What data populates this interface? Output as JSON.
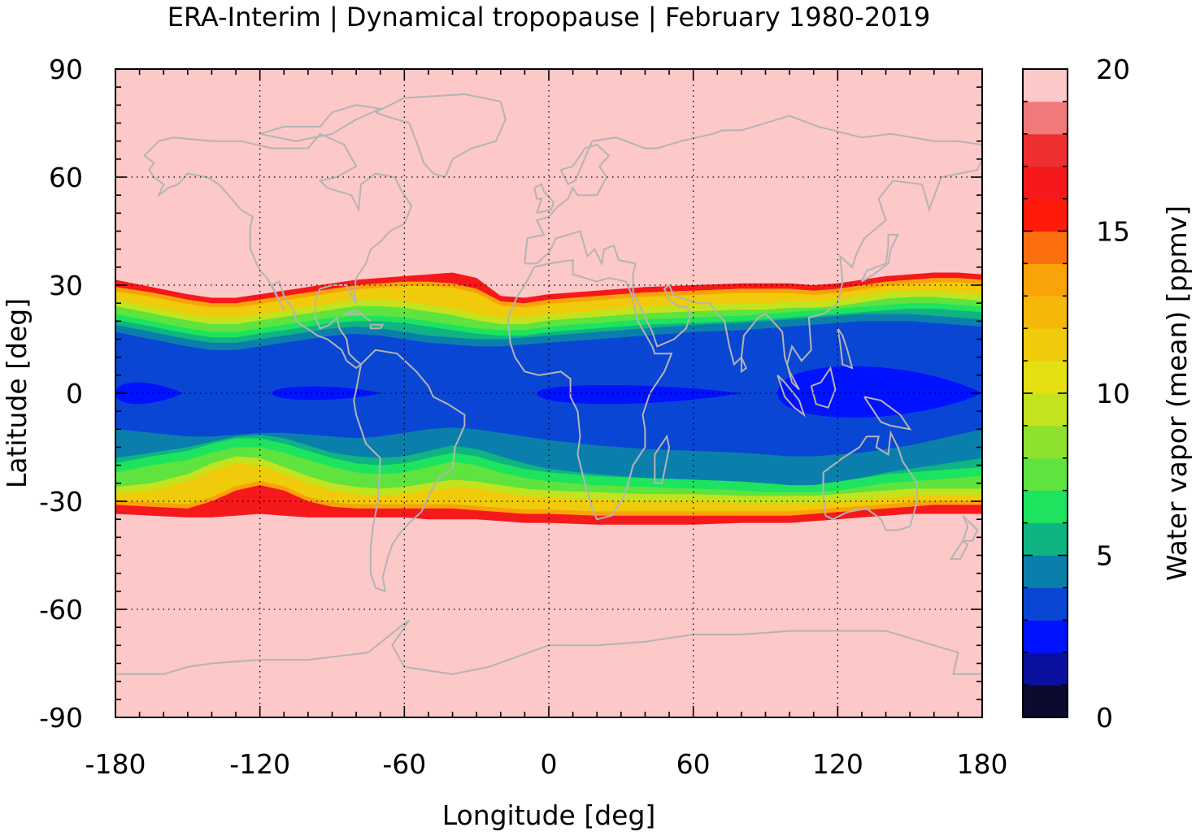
{
  "chart_data": {
    "type": "heatmap",
    "title": "ERA-Interim | Dynamical tropopause | February 1980-2019",
    "xlabel": "Longitude [deg]",
    "ylabel": "Latitude [deg]",
    "xlim": [
      -180,
      180
    ],
    "ylim": [
      -90,
      90
    ],
    "x_ticks": [
      "-180",
      "-120",
      "-60",
      "0",
      "60",
      "120",
      "180"
    ],
    "y_ticks": [
      "90",
      "60",
      "30",
      "0",
      "-30",
      "-60",
      "-90"
    ],
    "x_tick_values": [
      -180,
      -120,
      -60,
      0,
      60,
      120,
      180
    ],
    "y_tick_values": [
      90,
      60,
      30,
      0,
      -30,
      -60,
      -90
    ],
    "grid": "dotted",
    "colorbar": {
      "label": "Water vapor (mean) [ppmv]",
      "range": [
        0,
        20
      ],
      "ticks": [
        "0",
        "5",
        "10",
        "15",
        "20"
      ],
      "tick_values": [
        0,
        5,
        10,
        15,
        20
      ],
      "levels": [
        {
          "from": 0,
          "to": 1,
          "color": "#0b0b2e"
        },
        {
          "from": 1,
          "to": 2,
          "color": "#0a0f9e"
        },
        {
          "from": 2,
          "to": 3,
          "color": "#0012ff"
        },
        {
          "from": 3,
          "to": 4,
          "color": "#0a46d4"
        },
        {
          "from": 4,
          "to": 5,
          "color": "#0b7fab"
        },
        {
          "from": 5,
          "to": 6,
          "color": "#0fb482"
        },
        {
          "from": 6,
          "to": 7,
          "color": "#1ee35e"
        },
        {
          "from": 7,
          "to": 8,
          "color": "#5ee33f"
        },
        {
          "from": 8,
          "to": 9,
          "color": "#8ee22e"
        },
        {
          "from": 9,
          "to": 10,
          "color": "#c3e31e"
        },
        {
          "from": 10,
          "to": 11,
          "color": "#e4e011"
        },
        {
          "from": 11,
          "to": 12,
          "color": "#efcb0b"
        },
        {
          "from": 12,
          "to": 13,
          "color": "#f5b80a"
        },
        {
          "from": 13,
          "to": 14,
          "color": "#f9a309"
        },
        {
          "from": 14,
          "to": 15,
          "color": "#fb6f0f"
        },
        {
          "from": 15,
          "to": 16,
          "color": "#ff1a0a"
        },
        {
          "from": 16,
          "to": 17,
          "color": "#f5191c"
        },
        {
          "from": 17,
          "to": 18,
          "color": "#ee3030"
        },
        {
          "from": 18,
          "to": 19,
          "color": "#f07a7a"
        },
        {
          "from": 19,
          "to": 20,
          "color": "#fdc8c8"
        }
      ]
    },
    "field_bands": [
      {
        "value": 19.5,
        "description_levels": "background"
      },
      {
        "value": 16.5,
        "lat_south_edge_approx": [
          -35,
          -31
        ],
        "lat_north_edge_approx": [
          26,
          33
        ]
      },
      {
        "value": 12.5
      },
      {
        "value": 8.5
      },
      {
        "value": 5.5
      },
      {
        "value": 3.5
      },
      {
        "value": 2.5
      }
    ],
    "profile_lon": [
      -180,
      -165,
      -150,
      -140,
      -130,
      -120,
      -110,
      -100,
      -90,
      -80,
      -70,
      -60,
      -50,
      -40,
      -30,
      -20,
      -10,
      0,
      20,
      40,
      60,
      80,
      90,
      100,
      110,
      120,
      130,
      140,
      150,
      160,
      170,
      180
    ],
    "profile_lat": {
      "red_north": [
        31.5,
        29.5,
        27.5,
        26.5,
        26.5,
        27.5,
        28.5,
        29.5,
        30.5,
        31.5,
        32.0,
        32.5,
        33.0,
        33.5,
        32.0,
        27.0,
        26.5,
        27.5,
        28.5,
        29.5,
        30.0,
        30.5,
        30.5,
        30.5,
        30.0,
        30.5,
        31.5,
        32.5,
        33.0,
        33.5,
        33.5,
        33.0
      ],
      "orange_north": [
        29.5,
        28.0,
        26.0,
        25.0,
        25.0,
        26.0,
        27.0,
        28.0,
        29.0,
        30.0,
        30.5,
        31.0,
        31.0,
        30.5,
        29.0,
        25.5,
        25.0,
        26.0,
        27.0,
        28.0,
        28.5,
        29.0,
        29.0,
        29.0,
        28.5,
        29.0,
        30.0,
        31.0,
        31.5,
        32.0,
        32.0,
        31.5
      ],
      "green_north": [
        26.0,
        24.0,
        22.0,
        21.0,
        21.0,
        22.0,
        23.0,
        24.0,
        25.0,
        26.0,
        26.0,
        25.5,
        24.5,
        23.5,
        22.0,
        21.0,
        21.0,
        22.0,
        23.0,
        24.0,
        24.5,
        25.0,
        25.0,
        25.5,
        25.5,
        26.0,
        27.0,
        28.0,
        28.5,
        28.5,
        28.0,
        27.5
      ],
      "teal_north": [
        22.0,
        20.0,
        18.0,
        17.0,
        17.0,
        18.0,
        19.0,
        20.0,
        21.0,
        21.5,
        21.5,
        21.0,
        20.0,
        19.0,
        18.0,
        17.5,
        17.5,
        18.5,
        19.5,
        20.5,
        21.0,
        21.5,
        22.0,
        22.5,
        23.0,
        23.5,
        24.0,
        24.5,
        25.0,
        25.0,
        24.5,
        24.0
      ],
      "blue_north": [
        17.0,
        15.0,
        13.0,
        12.0,
        12.0,
        13.0,
        14.0,
        15.0,
        16.0,
        16.5,
        16.0,
        15.0,
        14.0,
        13.5,
        13.0,
        13.0,
        13.5,
        14.0,
        15.0,
        16.0,
        17.0,
        17.5,
        18.0,
        18.5,
        19.0,
        19.5,
        20.0,
        20.0,
        20.0,
        19.5,
        19.0,
        18.5
      ],
      "blue_south": [
        -10.0,
        -11.0,
        -12.0,
        -12.0,
        -11.5,
        -11.0,
        -11.0,
        -11.5,
        -12.0,
        -12.5,
        -12.0,
        -11.0,
        -10.0,
        -9.5,
        -10.0,
        -11.0,
        -12.0,
        -13.0,
        -14.5,
        -15.5,
        -16.0,
        -16.5,
        -17.0,
        -17.5,
        -17.5,
        -17.0,
        -16.5,
        -15.5,
        -14.5,
        -13.0,
        -11.5,
        -10.0
      ],
      "teal_south": [
        -16.5,
        -15.0,
        -13.5,
        -12.0,
        -10.5,
        -10.0,
        -11.0,
        -13.0,
        -15.0,
        -16.0,
        -16.5,
        -16.0,
        -14.5,
        -13.0,
        -14.0,
        -16.0,
        -18.0,
        -19.5,
        -21.0,
        -22.0,
        -22.5,
        -23.0,
        -23.5,
        -24.0,
        -24.0,
        -23.0,
        -22.0,
        -20.5,
        -19.5,
        -18.5,
        -17.5,
        -16.5
      ],
      "green_south": [
        -22.0,
        -20.0,
        -18.5,
        -16.5,
        -15.0,
        -15.0,
        -16.5,
        -18.5,
        -20.5,
        -22.0,
        -22.5,
        -22.0,
        -20.5,
        -19.0,
        -20.0,
        -22.0,
        -23.5,
        -24.5,
        -25.5,
        -26.0,
        -26.5,
        -27.0,
        -27.5,
        -27.5,
        -27.5,
        -27.0,
        -26.0,
        -25.0,
        -24.5,
        -24.0,
        -23.5,
        -23.0
      ],
      "orange_south": [
        -28.0,
        -27.0,
        -24.5,
        -21.5,
        -19.5,
        -20.0,
        -22.5,
        -25.0,
        -27.0,
        -28.0,
        -28.5,
        -28.0,
        -27.0,
        -26.0,
        -26.5,
        -27.5,
        -28.5,
        -29.0,
        -29.5,
        -30.0,
        -30.0,
        -30.5,
        -30.5,
        -30.5,
        -30.5,
        -30.0,
        -29.5,
        -29.0,
        -28.5,
        -28.5,
        -28.5,
        -28.5
      ],
      "red_south": [
        -31.0,
        -31.5,
        -32.0,
        -30.0,
        -27.0,
        -25.5,
        -27.0,
        -30.0,
        -31.5,
        -32.0,
        -32.0,
        -32.0,
        -32.0,
        -32.0,
        -32.5,
        -33.0,
        -33.5,
        -33.5,
        -34.0,
        -34.0,
        -34.0,
        -34.0,
        -34.0,
        -34.0,
        -33.5,
        -33.0,
        -32.5,
        -32.0,
        -31.5,
        -31.0,
        -31.0,
        -31.0
      ],
      "edge_south": [
        -33.5,
        -34.0,
        -34.5,
        -34.5,
        -34.0,
        -33.5,
        -34.0,
        -34.5,
        -34.5,
        -34.5,
        -34.5,
        -34.5,
        -35.0,
        -35.0,
        -35.0,
        -35.5,
        -36.0,
        -36.0,
        -36.5,
        -36.5,
        -36.5,
        -36.0,
        -36.0,
        -36.0,
        -35.5,
        -35.0,
        -34.5,
        -34.0,
        -33.5,
        -33.5,
        -33.5,
        -33.5
      ]
    }
  }
}
